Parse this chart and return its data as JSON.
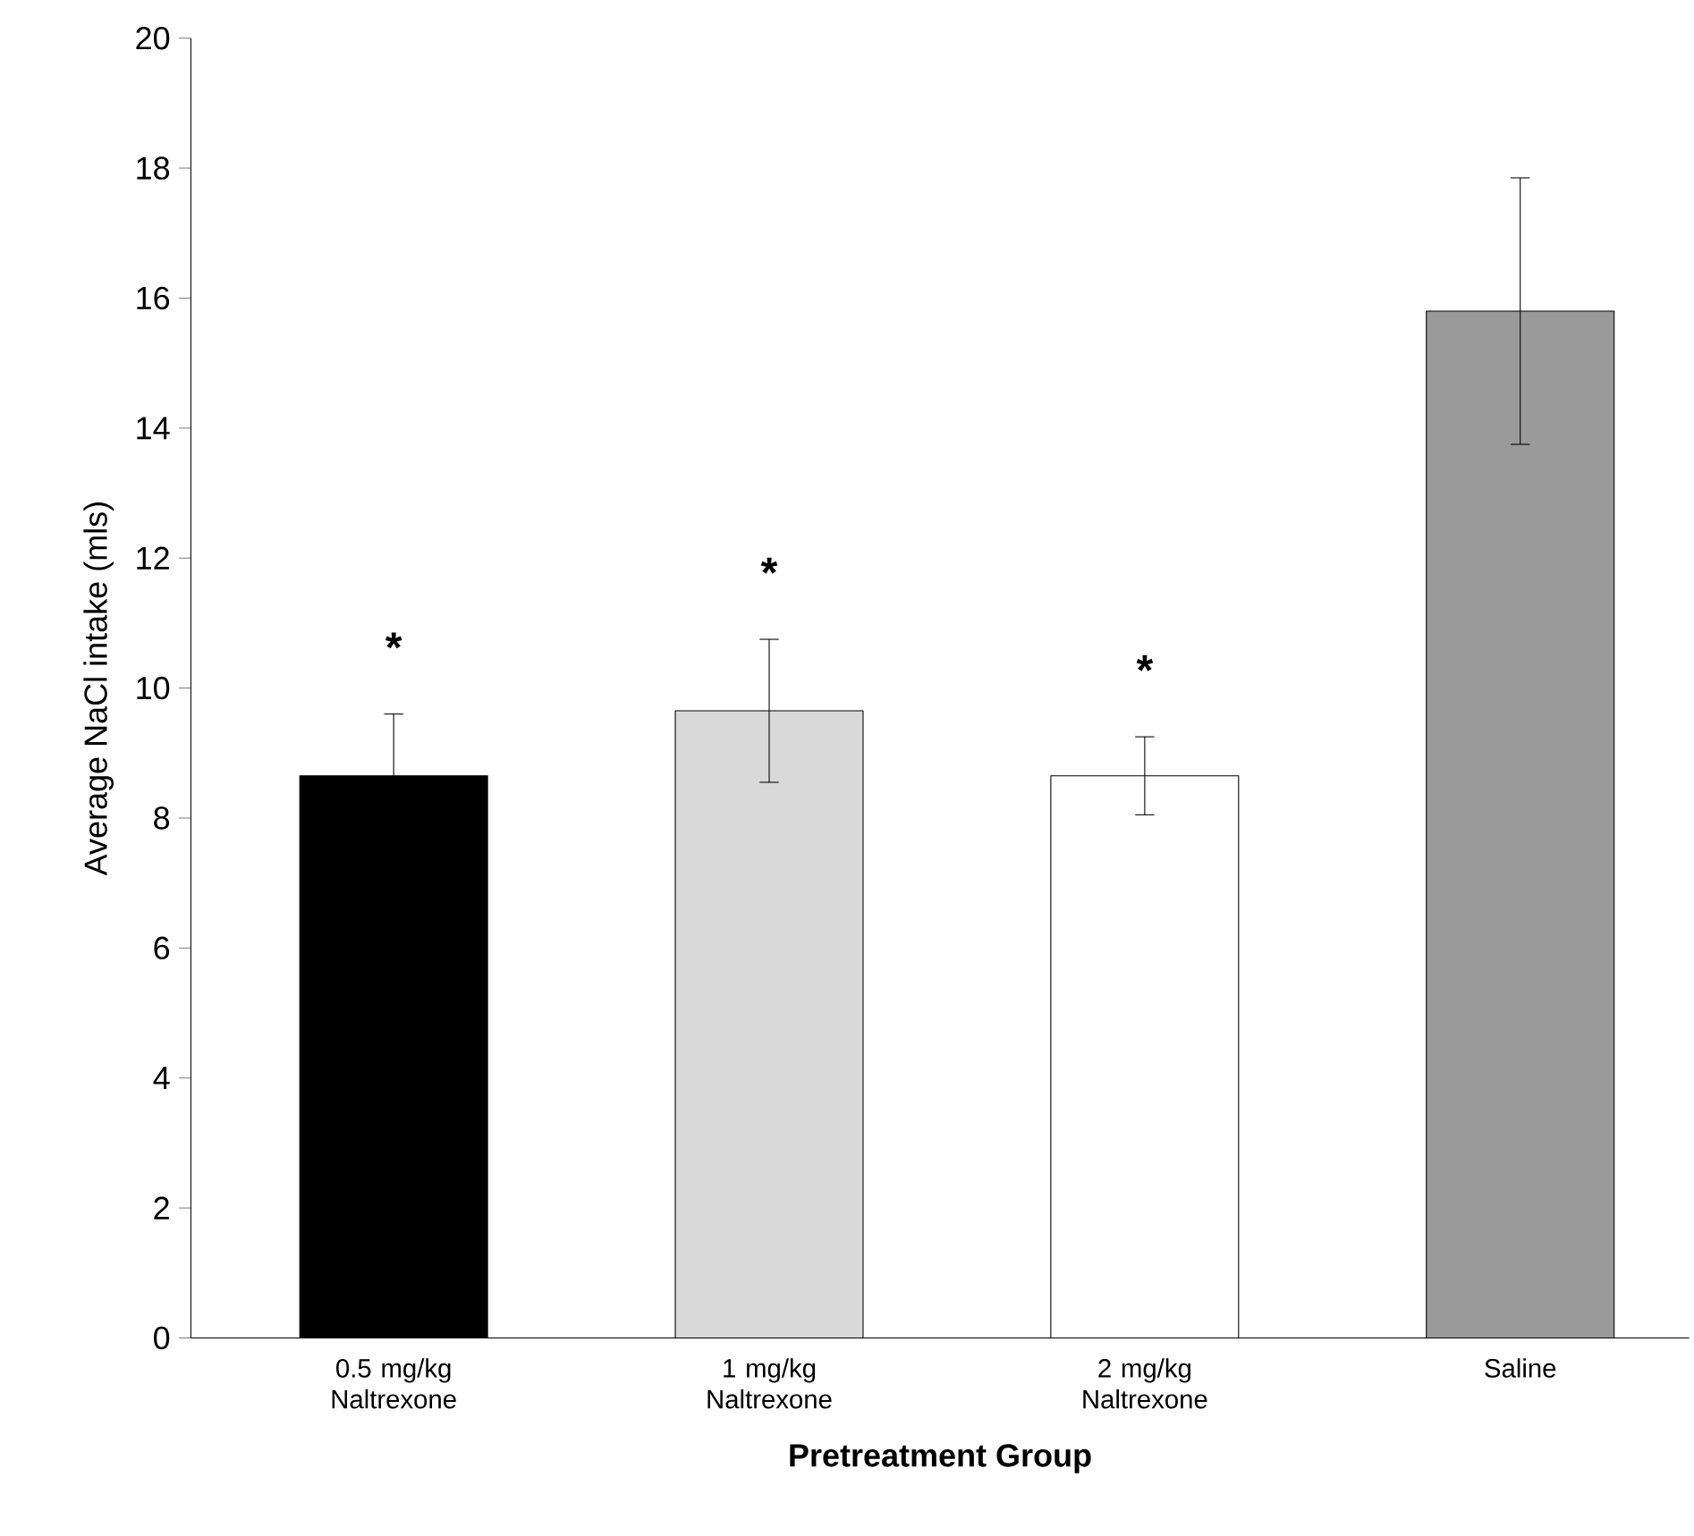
{
  "chart_data": {
    "type": "bar",
    "xlabel": "Pretreatment Group",
    "ylabel": "Average NaCl intake (mls)",
    "categories": [
      "0.5 mg/kg Naltrexone",
      "1 mg/kg Naltrexone",
      "2 mg/kg Naltrexone",
      "Saline"
    ],
    "values": [
      8.65,
      9.65,
      8.65,
      15.8
    ],
    "errors": [
      0.95,
      1.1,
      0.6,
      2.05
    ],
    "colors": [
      "#000000",
      "#d9d9d9",
      "#ffffff",
      "#9a9a9a"
    ],
    "ylim": [
      0,
      20
    ],
    "yticks": [
      0,
      2,
      4,
      6,
      8,
      10,
      12,
      14,
      16,
      18,
      20
    ],
    "annotations": [
      "*",
      "*",
      "*"
    ]
  }
}
